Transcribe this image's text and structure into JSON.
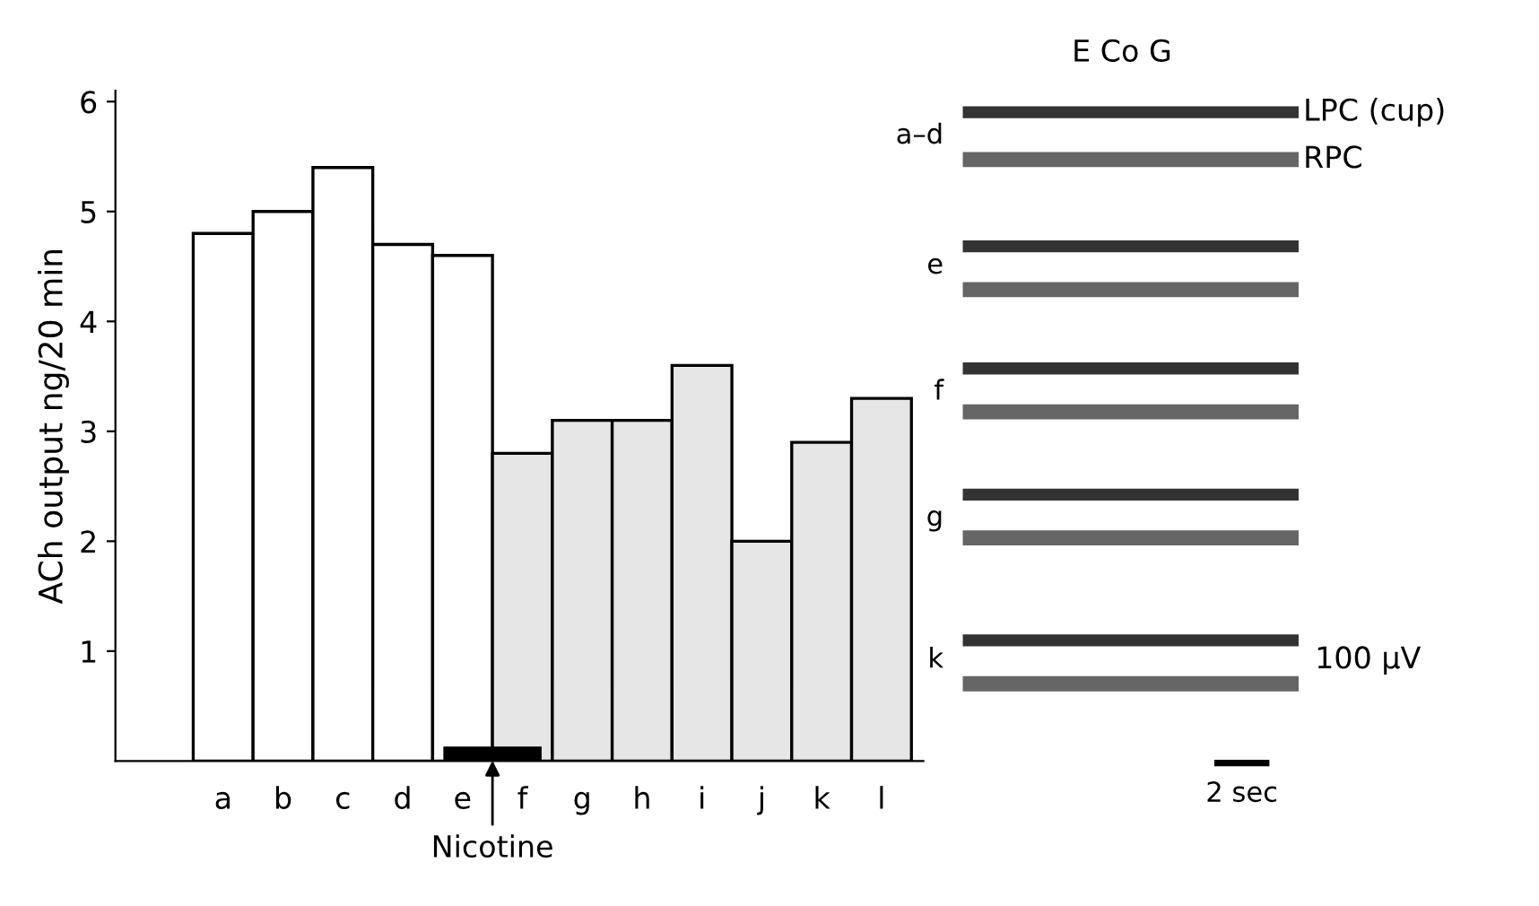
{
  "chart_data": {
    "type": "bar",
    "ylabel": "ACh output ng/20 min",
    "categories": [
      "a",
      "b",
      "c",
      "d",
      "e",
      "f",
      "g",
      "h",
      "i",
      "j",
      "k",
      "l"
    ],
    "values": [
      4.8,
      5.0,
      5.4,
      4.7,
      4.6,
      2.8,
      3.1,
      3.1,
      3.6,
      2.0,
      2.9,
      3.3
    ],
    "colors": [
      "#ffffff",
      "#ffffff",
      "#ffffff",
      "#ffffff",
      "#ffffff",
      "#e6e6e6",
      "#e6e6e6",
      "#e6e6e6",
      "#e6e6e6",
      "#e6e6e6",
      "#e6e6e6",
      "#e6e6e6"
    ],
    "ylim": [
      0,
      6.1
    ],
    "yticks": [
      1,
      2,
      3,
      4,
      5,
      6
    ],
    "grid": false,
    "legend": false,
    "annotations": [
      "Nicotine",
      "E Co G",
      "a–d",
      "LPC (cup)",
      "RPC",
      "e",
      "f",
      "g",
      "k",
      "100 µV",
      "2 sec"
    ]
  }
}
